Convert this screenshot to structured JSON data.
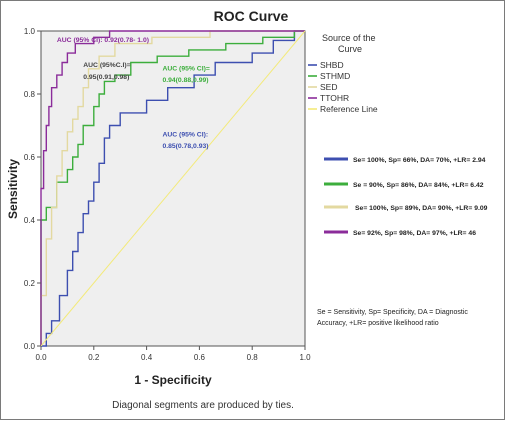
{
  "chart_data": {
    "type": "line",
    "title": "ROC Curve",
    "xlabel": "1 - Specificity",
    "ylabel": "Sensitivity",
    "xlim": [
      0,
      1
    ],
    "ylim": [
      0,
      1
    ],
    "x_ticks": [
      "0.0",
      "0.2",
      "0.4",
      "0.6",
      "0.8",
      "1.0"
    ],
    "y_ticks": [
      "0.0",
      "0.2",
      "0.4",
      "0.6",
      "0.8",
      "1.0"
    ],
    "legend_title": "Source of the Curve",
    "legend_position": "right",
    "plot_background": "#efefef",
    "series": [
      {
        "name": "SHBD",
        "color": "#3d4fb0",
        "points": [
          [
            0,
            0
          ],
          [
            0.02,
            0
          ],
          [
            0.02,
            0.04
          ],
          [
            0.04,
            0.04
          ],
          [
            0.04,
            0.08
          ],
          [
            0.07,
            0.08
          ],
          [
            0.07,
            0.16
          ],
          [
            0.1,
            0.16
          ],
          [
            0.1,
            0.24
          ],
          [
            0.12,
            0.24
          ],
          [
            0.12,
            0.3
          ],
          [
            0.14,
            0.3
          ],
          [
            0.14,
            0.36
          ],
          [
            0.16,
            0.36
          ],
          [
            0.16,
            0.42
          ],
          [
            0.18,
            0.42
          ],
          [
            0.18,
            0.46
          ],
          [
            0.2,
            0.46
          ],
          [
            0.2,
            0.52
          ],
          [
            0.22,
            0.52
          ],
          [
            0.22,
            0.58
          ],
          [
            0.24,
            0.58
          ],
          [
            0.24,
            0.66
          ],
          [
            0.26,
            0.66
          ],
          [
            0.26,
            0.7
          ],
          [
            0.3,
            0.7
          ],
          [
            0.3,
            0.74
          ],
          [
            0.4,
            0.74
          ],
          [
            0.4,
            0.78
          ],
          [
            0.48,
            0.78
          ],
          [
            0.48,
            0.82
          ],
          [
            0.58,
            0.82
          ],
          [
            0.58,
            0.86
          ],
          [
            0.66,
            0.86
          ],
          [
            0.66,
            0.9
          ],
          [
            0.8,
            0.9
          ],
          [
            0.8,
            0.93
          ],
          [
            0.88,
            0.93
          ],
          [
            0.88,
            0.97
          ],
          [
            0.96,
            0.97
          ],
          [
            0.96,
            1
          ],
          [
            1,
            1
          ]
        ]
      },
      {
        "name": "STHMD",
        "color": "#3cae3c",
        "points": [
          [
            0,
            0
          ],
          [
            0,
            0.4
          ],
          [
            0.02,
            0.4
          ],
          [
            0.02,
            0.44
          ],
          [
            0.06,
            0.44
          ],
          [
            0.06,
            0.52
          ],
          [
            0.1,
            0.52
          ],
          [
            0.1,
            0.56
          ],
          [
            0.12,
            0.56
          ],
          [
            0.12,
            0.6
          ],
          [
            0.14,
            0.6
          ],
          [
            0.14,
            0.64
          ],
          [
            0.16,
            0.64
          ],
          [
            0.16,
            0.7
          ],
          [
            0.2,
            0.7
          ],
          [
            0.2,
            0.76
          ],
          [
            0.22,
            0.76
          ],
          [
            0.22,
            0.8
          ],
          [
            0.24,
            0.8
          ],
          [
            0.24,
            0.84
          ],
          [
            0.28,
            0.84
          ],
          [
            0.28,
            0.86
          ],
          [
            0.34,
            0.86
          ],
          [
            0.34,
            0.9
          ],
          [
            0.44,
            0.9
          ],
          [
            0.44,
            0.92
          ],
          [
            0.56,
            0.92
          ],
          [
            0.56,
            0.94
          ],
          [
            0.7,
            0.94
          ],
          [
            0.7,
            0.96
          ],
          [
            0.84,
            0.96
          ],
          [
            0.84,
            0.98
          ],
          [
            0.96,
            0.98
          ],
          [
            0.96,
            1
          ],
          [
            1,
            1
          ]
        ]
      },
      {
        "name": "SED",
        "color": "#e3d9a0",
        "points": [
          [
            0,
            0
          ],
          [
            0,
            0.16
          ],
          [
            0.02,
            0.16
          ],
          [
            0.02,
            0.34
          ],
          [
            0.04,
            0.34
          ],
          [
            0.04,
            0.44
          ],
          [
            0.06,
            0.44
          ],
          [
            0.06,
            0.54
          ],
          [
            0.08,
            0.54
          ],
          [
            0.08,
            0.62
          ],
          [
            0.1,
            0.62
          ],
          [
            0.1,
            0.68
          ],
          [
            0.12,
            0.68
          ],
          [
            0.12,
            0.72
          ],
          [
            0.14,
            0.72
          ],
          [
            0.14,
            0.76
          ],
          [
            0.16,
            0.76
          ],
          [
            0.16,
            0.82
          ],
          [
            0.18,
            0.82
          ],
          [
            0.18,
            0.88
          ],
          [
            0.22,
            0.88
          ],
          [
            0.22,
            0.92
          ],
          [
            0.28,
            0.92
          ],
          [
            0.28,
            0.96
          ],
          [
            0.42,
            0.96
          ],
          [
            0.42,
            0.98
          ],
          [
            0.64,
            0.98
          ],
          [
            0.64,
            1
          ],
          [
            1,
            1
          ]
        ]
      },
      {
        "name": "TTOHR",
        "color": "#8b2c9a",
        "points": [
          [
            0,
            0
          ],
          [
            0,
            0.5
          ],
          [
            0.01,
            0.5
          ],
          [
            0.01,
            0.62
          ],
          [
            0.02,
            0.62
          ],
          [
            0.02,
            0.7
          ],
          [
            0.03,
            0.7
          ],
          [
            0.03,
            0.76
          ],
          [
            0.04,
            0.76
          ],
          [
            0.04,
            0.82
          ],
          [
            0.06,
            0.82
          ],
          [
            0.06,
            0.86
          ],
          [
            0.08,
            0.86
          ],
          [
            0.08,
            0.9
          ],
          [
            0.1,
            0.9
          ],
          [
            0.1,
            0.93
          ],
          [
            0.13,
            0.93
          ],
          [
            0.13,
            0.96
          ],
          [
            0.2,
            0.96
          ],
          [
            0.2,
            0.98
          ],
          [
            0.26,
            0.98
          ],
          [
            0.26,
            1
          ],
          [
            1,
            1
          ]
        ]
      },
      {
        "name": "Reference Line",
        "color": "#f3ea7a",
        "points": [
          [
            0,
            0
          ],
          [
            1,
            1
          ]
        ]
      }
    ],
    "annotations": [
      {
        "text": "AUC (95% CI): 0.92(0.78- 1.0)",
        "color": "#8b2c9a",
        "at": [
          0.06,
          0.965
        ]
      },
      {
        "text": "AUC (95%C.I)=",
        "color": "#444444",
        "at": [
          0.16,
          0.885
        ]
      },
      {
        "text": "0.95(0.91,0.98)",
        "color": "#444444",
        "at": [
          0.16,
          0.848
        ]
      },
      {
        "text": "AUC (95% CI)=",
        "color": "#3cae3c",
        "at": [
          0.46,
          0.875
        ]
      },
      {
        "text": "0.94(0.88,0.99)",
        "color": "#3cae3c",
        "at": [
          0.46,
          0.838
        ]
      },
      {
        "text": "AUC (95% CI):",
        "color": "#3d4fb0",
        "at": [
          0.46,
          0.665
        ]
      },
      {
        "text": "0.85(0.78,0.93)",
        "color": "#3d4fb0",
        "at": [
          0.46,
          0.628
        ]
      }
    ],
    "stats_legend": [
      {
        "text": "Se= 100%, Sp= 66%, DA= 70%, +LR= 2.94",
        "color": "#3d4fb0"
      },
      {
        "text": "Se = 90%, Sp= 86%, DA= 84%, +LR= 6.42",
        "color": "#3cae3c"
      },
      {
        "text": "Se= 100%, Sp= 89%, DA= 90%, +LR= 9.09",
        "color": "#e3d9a0"
      },
      {
        "text": "Se= 92%, Sp= 98%, DA= 97%, +LR= 46",
        "color": "#8b2c9a"
      }
    ],
    "footnote_right": "Se = Sensitivity, Sp= Specificity, DA = Diagnostic Accuracy, +LR= positive likelihood ratio",
    "footnote_bottom": "Diagonal segments are produced by ties."
  }
}
